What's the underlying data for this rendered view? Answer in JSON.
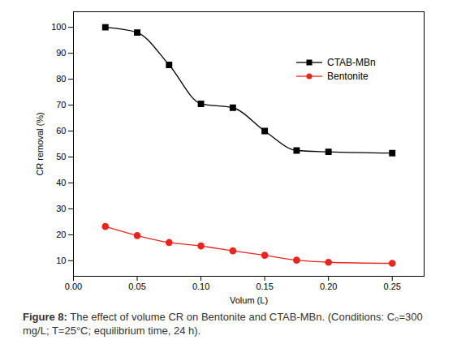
{
  "chart_data": {
    "type": "line",
    "x_label": "Volum (L)",
    "y_label": "CR removal (%)",
    "caption": "Figure 8: The effect of volume CR on Bentonite and CTAB-MBn. (Conditions: C₀=300 mg/L; T=25°C; equilibrium time, 24 h).",
    "x": [
      0.025,
      0.05,
      0.075,
      0.1,
      0.125,
      0.15,
      0.175,
      0.2,
      0.25
    ],
    "series": [
      {
        "name": "CTAB-MBn",
        "color": "#000000",
        "marker": "square",
        "values": [
          100,
          98,
          85.5,
          70.5,
          69,
          60,
          52.5,
          52,
          51.5
        ]
      },
      {
        "name": "Bentonite",
        "color": "#e8251f",
        "marker": "circle",
        "values": [
          23.2,
          19.7,
          17,
          15.7,
          13.8,
          12.1,
          10.2,
          9.4,
          9.0
        ]
      }
    ],
    "xlim": [
      0,
      0.275
    ],
    "xticks": [
      {
        "value": 0,
        "label": "0.00"
      },
      {
        "value": 0.05,
        "label": "0.05"
      },
      {
        "value": 0.1,
        "label": "0.10"
      },
      {
        "value": 0.15,
        "label": "0.15"
      },
      {
        "value": 0.2,
        "label": "0.20"
      },
      {
        "value": 0.25,
        "label": "0.25"
      }
    ],
    "ylim": [
      4,
      106
    ],
    "yticks": [
      10,
      20,
      30,
      40,
      50,
      60,
      70,
      80,
      90,
      100
    ],
    "grid": false,
    "legend": "upper right"
  }
}
